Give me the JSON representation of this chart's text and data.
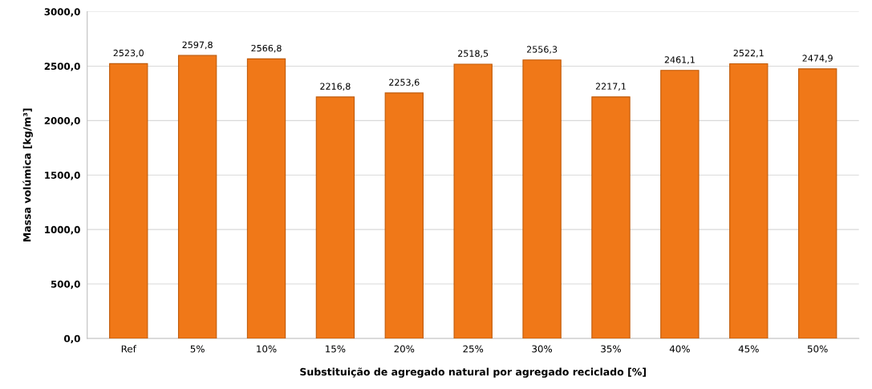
{
  "chart_data": {
    "type": "bar",
    "xlabel": "Substituição de agregado natural por agregado reciclado [%]",
    "ylabel": "Massa volúmica [kg/m³]",
    "categories": [
      "Ref",
      "5%",
      "10%",
      "15%",
      "20%",
      "25%",
      "30%",
      "35%",
      "40%",
      "45%",
      "50%"
    ],
    "values": [
      2523.0,
      2597.8,
      2566.8,
      2216.8,
      2253.6,
      2518.5,
      2556.3,
      2217.1,
      2461.1,
      2522.1,
      2474.9
    ],
    "value_labels": [
      "2523,0",
      "2597,8",
      "2566,8",
      "2216,8",
      "2253,6",
      "2518,5",
      "2556,3",
      "2217,1",
      "2461,1",
      "2522,1",
      "2474,9"
    ],
    "color": "#f07818",
    "ylim": [
      0,
      3000
    ],
    "yticks": [
      {
        "value": 0,
        "label": "0,0"
      },
      {
        "value": 500,
        "label": "500,0"
      },
      {
        "value": 1000,
        "label": "1000,0"
      },
      {
        "value": 1500,
        "label": "1500,0"
      },
      {
        "value": 2000,
        "label": "2000,0"
      },
      {
        "value": 2500,
        "label": "2500,0"
      },
      {
        "value": 3000,
        "label": "3000,0"
      }
    ],
    "grid": "y",
    "legend": false
  }
}
